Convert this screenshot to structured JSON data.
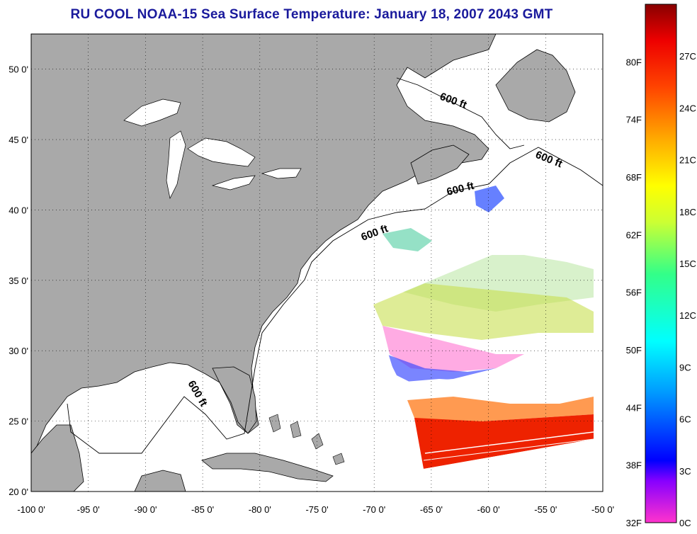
{
  "title": "RU COOL  NOAA-15  Sea Surface Temperature:  January 18, 2007 2043 GMT",
  "map": {
    "lon_range": [
      -100,
      -50
    ],
    "lat_range": [
      20,
      52.5
    ],
    "lon_ticks": [
      "-100 0'",
      "-95 0'",
      "-90 0'",
      "-85 0'",
      "-80 0'",
      "-75 0'",
      "-70 0'",
      "-65 0'",
      "-60 0'",
      "-55 0'",
      "-50 0'"
    ],
    "lat_ticks": [
      "20 0'",
      "25 0'",
      "30 0'",
      "35 0'",
      "40 0'",
      "45 0'",
      "50 0'"
    ],
    "contour_labels": [
      "600 ft",
      "600 ft",
      "600 ft",
      "600 ft",
      "600 ft"
    ],
    "land_color": "#a9a9a9",
    "ocean_color": "#ffffff"
  },
  "colorbar": {
    "fahrenheit_labels": [
      "80F",
      "74F",
      "68F",
      "62F",
      "56F",
      "50F",
      "44F",
      "38F",
      "32F"
    ],
    "celsius_labels": [
      "27C",
      "24C",
      "21C",
      "18C",
      "15C",
      "12C",
      "9C",
      "6C",
      "3C",
      "0C"
    ],
    "colors": [
      "#ff33cc",
      "#8800ff",
      "#0000ff",
      "#00aaff",
      "#00ffff",
      "#33ff99",
      "#ccff33",
      "#ffff00",
      "#ffaa00",
      "#ff5500",
      "#ff0000",
      "#990000"
    ]
  }
}
